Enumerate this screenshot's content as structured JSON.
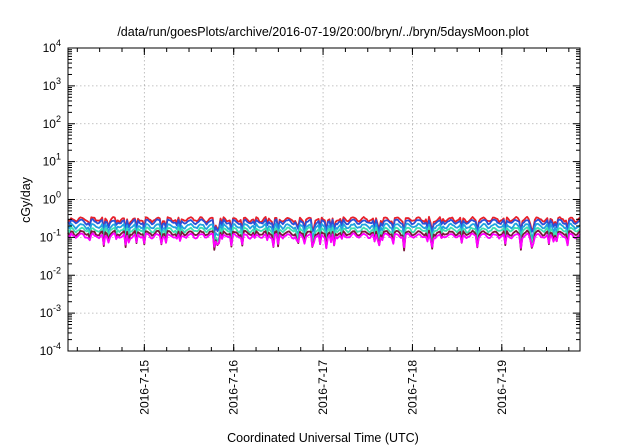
{
  "chart_data": {
    "type": "line",
    "title": "/data/run/goesPlots/archive/2016-07-19/20:00/bryn/../bryn/5daysMoon.plot",
    "xlabel": "Coordinated Universal Time (UTC)",
    "ylabel": "cGy/day",
    "y_scale": "log",
    "ylim": [
      0.0001,
      10000
    ],
    "y_ticks": [
      {
        "value": 0.0001,
        "base": "10",
        "exp": "-4"
      },
      {
        "value": 0.001,
        "base": "10",
        "exp": "-3"
      },
      {
        "value": 0.01,
        "base": "10",
        "exp": "-2"
      },
      {
        "value": 0.1,
        "base": "10",
        "exp": "-1"
      },
      {
        "value": 1,
        "base": "10",
        "exp": "0"
      },
      {
        "value": 10,
        "base": "10",
        "exp": "1"
      },
      {
        "value": 100,
        "base": "10",
        "exp": "2"
      },
      {
        "value": 1000,
        "base": "10",
        "exp": "3"
      },
      {
        "value": 10000,
        "base": "10",
        "exp": "4"
      }
    ],
    "xlim": [
      "2016-07-14T03:30",
      "2016-07-19T21:00"
    ],
    "x_ticks": [
      {
        "value": "2016-07-15T00:00",
        "label": "2016-7-15"
      },
      {
        "value": "2016-07-16T00:00",
        "label": "2016-7-16"
      },
      {
        "value": "2016-07-17T00:00",
        "label": "2016-7-17"
      },
      {
        "value": "2016-07-18T00:00",
        "label": "2016-7-18"
      },
      {
        "value": "2016-07-19T00:00",
        "label": "2016-7-19"
      }
    ],
    "grid": true,
    "legend": "none",
    "series": [
      {
        "color": "#e8202a",
        "base": 0.3,
        "dip": 0.6
      },
      {
        "color": "#2a4fd8",
        "base": 0.26,
        "dip": 0.55
      },
      {
        "color": "#1fa3e0",
        "base": 0.2,
        "dip": 0.6
      },
      {
        "color": "#3fe0b0",
        "base": 0.16,
        "dip": 0.65
      },
      {
        "color": "#7a1a3a",
        "base": 0.13,
        "dip": 0.7
      },
      {
        "color": "#ff00ff",
        "base": 0.11,
        "dip": 0.55
      }
    ]
  }
}
